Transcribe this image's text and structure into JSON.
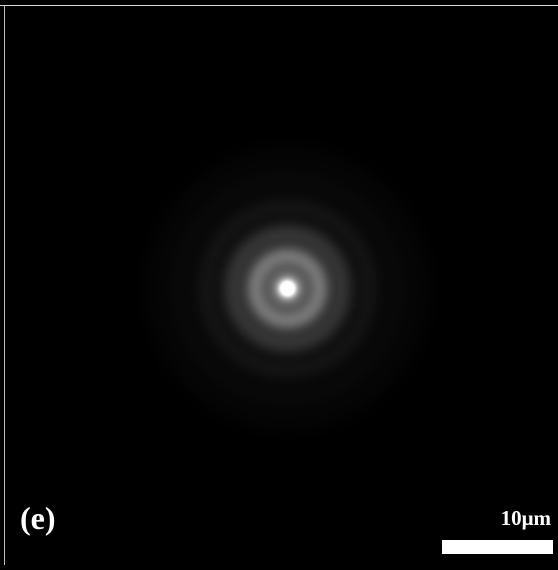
{
  "figure": {
    "panel_label": "(e)",
    "scale_bar_label": "10μm",
    "background_color": "#000000",
    "spot_color": "#ffffff"
  }
}
